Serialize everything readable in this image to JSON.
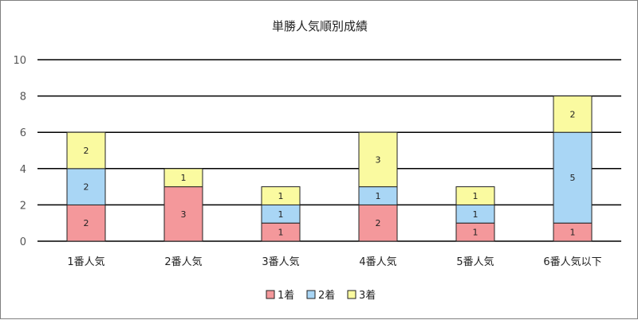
{
  "chart_data": {
    "type": "bar",
    "stacked": true,
    "title": "単勝人気順別成績",
    "categories": [
      "1番人気",
      "2番人気",
      "3番人気",
      "4番人気",
      "5番人気",
      "6番人気以下"
    ],
    "series": [
      {
        "name": "1着",
        "color": "#f4989b",
        "values": [
          2,
          3,
          1,
          2,
          1,
          1
        ]
      },
      {
        "name": "2着",
        "color": "#a9d6f5",
        "values": [
          2,
          0,
          1,
          1,
          1,
          5
        ]
      },
      {
        "name": "3着",
        "color": "#fafaa0",
        "values": [
          2,
          1,
          1,
          3,
          1,
          2
        ]
      }
    ],
    "ylim": [
      0,
      10
    ],
    "yticks": [
      0,
      2,
      4,
      6,
      8,
      10
    ],
    "grid": true,
    "legend_position": "bottom"
  }
}
